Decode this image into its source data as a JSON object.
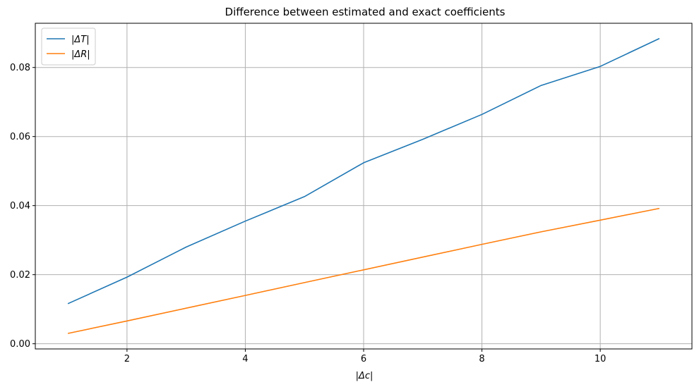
{
  "chart_data": {
    "type": "line",
    "title": "Difference between estimated and exact coefficients",
    "xlabel": "|Δc|",
    "ylabel": "",
    "xlim": [
      0.45,
      11.55
    ],
    "ylim": [
      -0.0015,
      0.0928
    ],
    "x_ticks": [
      2,
      4,
      6,
      8,
      10
    ],
    "y_ticks": [
      0.0,
      0.02,
      0.04,
      0.06,
      0.08
    ],
    "x_tick_labels": [
      "2",
      "4",
      "6",
      "8",
      "10"
    ],
    "y_tick_labels": [
      "0.00",
      "0.02",
      "0.04",
      "0.06",
      "0.08"
    ],
    "grid": true,
    "legend_position": "top-left",
    "x": [
      1,
      2,
      3,
      4,
      5,
      6,
      7,
      8,
      9,
      10,
      11
    ],
    "series": [
      {
        "name": "|ΔT|",
        "color": "#1f77b4",
        "values": [
          0.0116,
          0.0193,
          0.028,
          0.0355,
          0.0426,
          0.0524,
          0.0592,
          0.0664,
          0.0748,
          0.0803,
          0.0884
        ]
      },
      {
        "name": "|ΔR|",
        "color": "#ff7f0e",
        "values": [
          0.003,
          0.0066,
          0.0103,
          0.014,
          0.0177,
          0.0214,
          0.0251,
          0.0288,
          0.0324,
          0.0358,
          0.0392
        ]
      }
    ]
  }
}
